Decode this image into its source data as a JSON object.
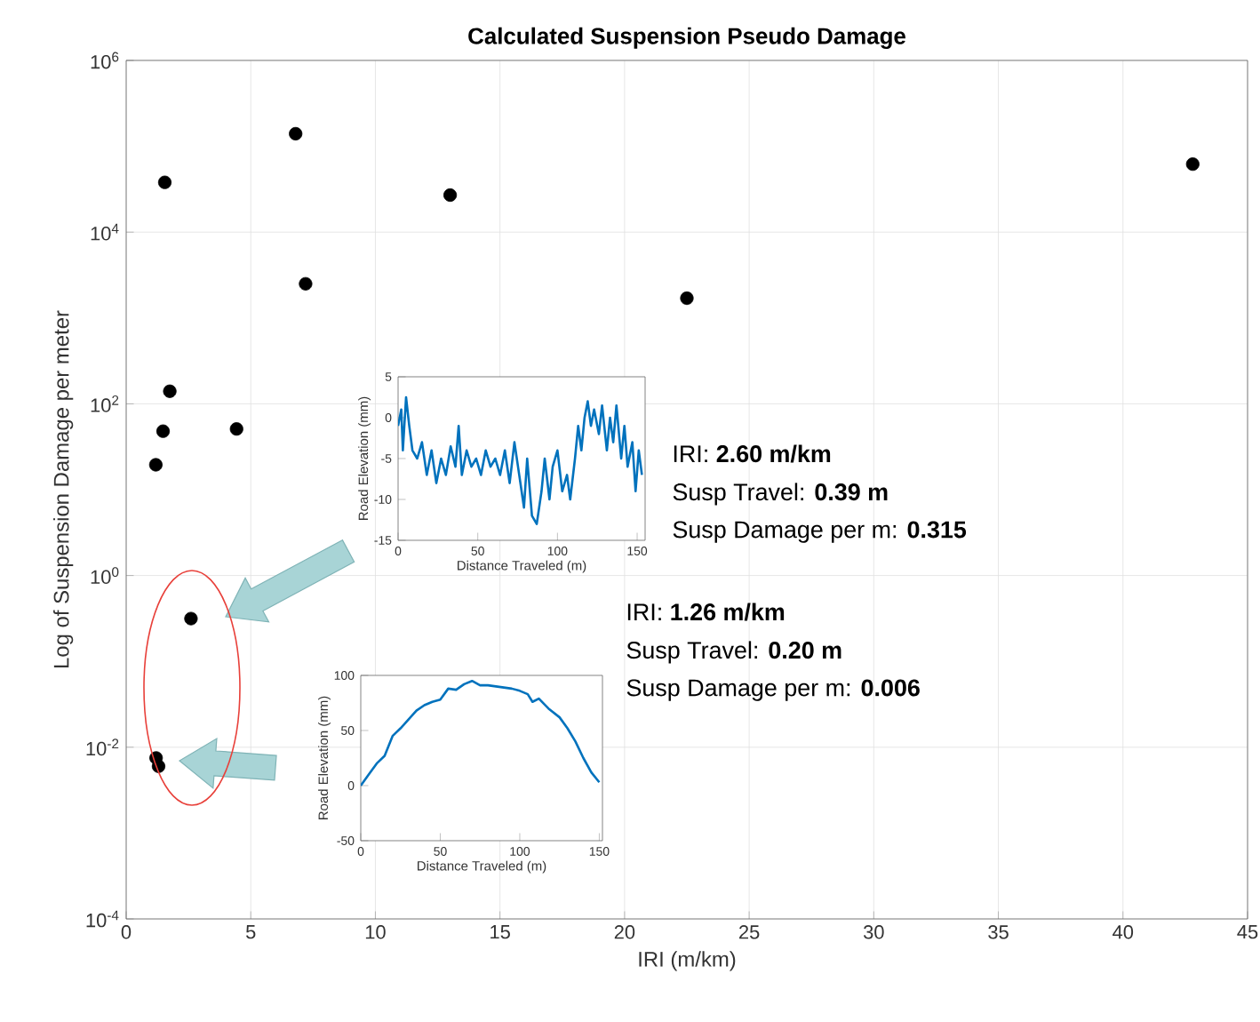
{
  "chart_data": [
    {
      "type": "scatter",
      "title": "Calculated Suspension Pseudo Damage",
      "xlabel": "IRI (m/km)",
      "ylabel": "Log of Suspension Damage per meter",
      "log": "y",
      "grid": true,
      "marker": "circle",
      "color": "#000000",
      "x": [
        1.55,
        6.8,
        13.0,
        42.8,
        7.2,
        22.5,
        1.75,
        1.48,
        4.43,
        1.19,
        2.6,
        1.2,
        1.3
      ],
      "values": [
        38000,
        140000,
        27000,
        62000,
        2500,
        1700,
        140,
        48,
        51,
        19.5,
        0.315,
        0.0075,
        0.006
      ],
      "xlim": [
        0,
        45
      ],
      "ylim": [
        0.0001,
        1000000
      ],
      "xticks": [
        0,
        5,
        10,
        15,
        20,
        25,
        30,
        35,
        40,
        45
      ],
      "yticks": [
        {
          "value": 0.0001,
          "label": "10$^{-4}$"
        },
        {
          "value": 0.01,
          "label": "10$^{-2}$"
        },
        {
          "value": 1,
          "label": "10$^{0}$"
        },
        {
          "value": 100,
          "label": "10$^{2}$"
        },
        {
          "value": 10000,
          "label": "10$^{4}$"
        },
        {
          "value": 1000000,
          "label": "10$^{6}$"
        }
      ]
    },
    {
      "type": "line",
      "xlabel": "Distance Traveled (m)",
      "ylabel": "Road Elevation (mm)",
      "color": "#0072bd",
      "x": [
        0,
        2,
        3,
        5,
        7,
        9,
        12,
        15,
        18,
        21,
        24,
        27,
        30,
        33,
        36,
        38,
        40,
        43,
        46,
        49,
        52,
        55,
        58,
        61,
        64,
        67,
        70,
        73,
        76,
        79,
        81,
        84,
        87,
        90,
        92,
        95,
        97,
        100,
        103,
        106,
        108,
        111,
        113,
        115,
        117,
        119,
        121,
        123,
        126,
        128,
        131,
        133,
        135,
        137,
        140,
        142,
        144,
        147,
        149,
        151,
        153
      ],
      "values": [
        -1,
        1,
        -4,
        2.5,
        -1,
        -4,
        -5,
        -3,
        -7,
        -4,
        -8,
        -5,
        -7,
        -3.5,
        -6,
        -1,
        -7,
        -4,
        -6,
        -5,
        -7,
        -4,
        -6,
        -5,
        -7,
        -4,
        -8,
        -3,
        -7,
        -11,
        -5,
        -12,
        -13,
        -9,
        -5,
        -10,
        -6,
        -4,
        -9,
        -7,
        -10,
        -5,
        -1,
        -4,
        0,
        2,
        -1,
        1,
        -2,
        1.5,
        -4,
        0,
        -3,
        1.5,
        -5,
        -1,
        -6,
        -3,
        -9,
        -4,
        -7
      ],
      "xlim": [
        0,
        155
      ],
      "ylim": [
        -15,
        5
      ],
      "xticks": [
        0,
        50,
        100,
        150
      ],
      "yticks": [
        -15,
        -10,
        -5,
        0,
        5
      ],
      "annotations": [
        "IRI: **2.60 m/km**",
        "Susp Travel: **0.39 m**",
        "Susp Damage per m: **0.315**"
      ]
    },
    {
      "type": "line",
      "xlabel": "Distance Traveled (m)",
      "ylabel": "Road Elevation (mm)",
      "color": "#0072bd",
      "x": [
        0,
        5,
        10,
        15,
        20,
        25,
        30,
        35,
        40,
        45,
        50,
        55,
        60,
        65,
        70,
        75,
        80,
        85,
        90,
        95,
        100,
        105,
        108,
        112,
        118,
        125,
        130,
        135,
        140,
        145,
        150
      ],
      "values": [
        0,
        10,
        20,
        27,
        45,
        52,
        60,
        68,
        73,
        76,
        78,
        88,
        87,
        92,
        95,
        91,
        91,
        90,
        89,
        88,
        86,
        83,
        76,
        79,
        70,
        62,
        52,
        40,
        25,
        12,
        3
      ],
      "xlim": [
        0,
        152
      ],
      "ylim": [
        -50,
        100
      ],
      "xticks": [
        0,
        50,
        100,
        150
      ],
      "yticks": [
        -50,
        0,
        50,
        100
      ],
      "annotations": [
        "IRI: **1.26 m/km**",
        "Susp Travel: **0.20 m**",
        "Susp Damage per m: **0.006**"
      ]
    }
  ]
}
